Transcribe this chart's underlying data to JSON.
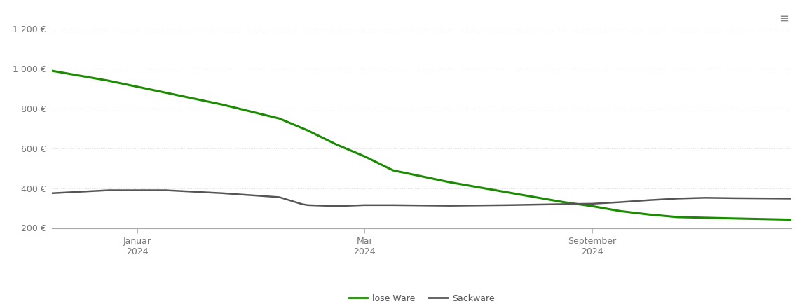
{
  "background_color": "#ffffff",
  "grid_color": "#dddddd",
  "ylim": [
    200,
    1300
  ],
  "yticks": [
    200,
    400,
    600,
    800,
    1000,
    1200
  ],
  "ytick_labels": [
    "200 €",
    "400 €",
    "600 €",
    "800 €",
    "1 000 €",
    "1 200 €"
  ],
  "x_tick_positions": [
    1.5,
    5.5,
    9.5
  ],
  "x_tick_labels": [
    "Januar\n2024",
    "Mai\n2024",
    "September\n2024"
  ],
  "lose_ware_color": "#1a8c00",
  "sackware_color": "#555555",
  "lose_ware_linewidth": 2.2,
  "sackware_linewidth": 1.8,
  "legend_labels": [
    "lose Ware",
    "Sackware"
  ],
  "x_values": [
    0,
    1,
    2,
    3,
    4,
    4.5,
    5,
    5.5,
    6,
    7,
    8,
    9,
    9.5,
    10,
    10.5,
    11,
    12,
    13
  ],
  "lose_ware_values": [
    990,
    940,
    880,
    820,
    750,
    690,
    620,
    560,
    490,
    430,
    380,
    330,
    310,
    285,
    268,
    255,
    248,
    242
  ],
  "sackware_x": [
    0,
    1,
    2,
    3,
    4,
    4.4,
    4.5,
    5,
    5.5,
    6,
    7,
    8,
    9,
    9.5,
    10,
    10.5,
    11,
    11.5,
    12,
    13
  ],
  "sackware_values": [
    375,
    390,
    390,
    375,
    355,
    320,
    315,
    310,
    315,
    315,
    312,
    315,
    320,
    322,
    330,
    340,
    348,
    352,
    350,
    348
  ]
}
